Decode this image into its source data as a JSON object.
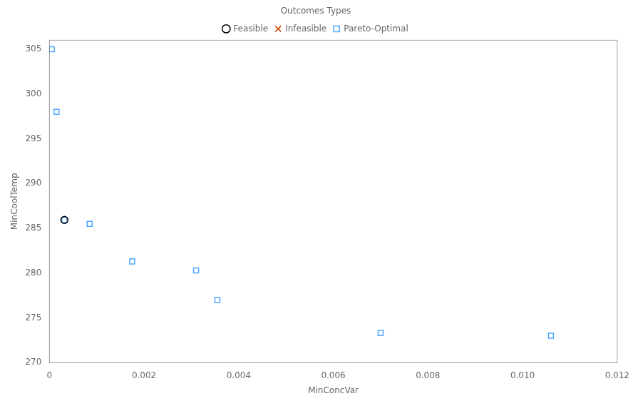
{
  "chart_data": {
    "type": "scatter",
    "xlabel": "MinConcVar",
    "ylabel": "MinCoolTemp",
    "legend_title": "Outcomes Types",
    "legend": "top",
    "grid": false,
    "xlim": [
      0,
      0.012
    ],
    "ylim": [
      270,
      306
    ],
    "xticks": [
      0,
      0.002,
      0.004,
      0.006,
      0.008,
      {
        "value": 0.01,
        "label": "0.010"
      },
      0.012
    ],
    "yticks": [
      270,
      275,
      280,
      285,
      290,
      295,
      300,
      305
    ],
    "series": [
      {
        "name": "Feasible",
        "color": "#000000",
        "marker": "circle",
        "x": [
          0.00031695
        ],
        "values": [
          285.9297
        ]
      },
      {
        "name": "Infeasible",
        "color": "#CC4400",
        "marker": "x",
        "x": [],
        "values": []
      },
      {
        "name": "Pareto-Optimal",
        "color": "#4DA6FF",
        "marker": "square",
        "x": [
          5e-05,
          0.00015,
          0.00031695,
          0.00085,
          0.00175,
          0.0031,
          0.00355,
          0.007,
          0.0106
        ],
        "values": [
          305.0,
          298.0,
          285.9297,
          285.5,
          281.3,
          280.3,
          277.0,
          273.3,
          273.0
        ]
      }
    ]
  }
}
